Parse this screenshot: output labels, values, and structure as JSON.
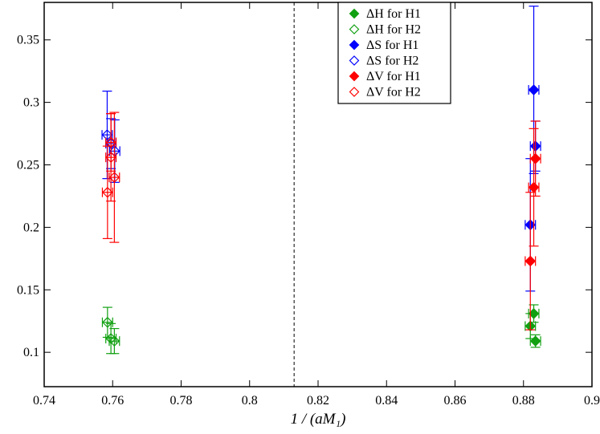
{
  "chart_data": {
    "type": "scatter",
    "x_label": "1 / (aM₁)",
    "xlim": [
      0.74,
      0.9
    ],
    "ylim": [
      0.0725,
      0.38
    ],
    "xticks": [
      0.74,
      0.76,
      0.78,
      0.8,
      0.82,
      0.84,
      0.86,
      0.88,
      0.9
    ],
    "yticks": [
      0.1,
      0.15,
      0.2,
      0.25,
      0.3,
      0.35
    ],
    "vline": 0.813,
    "series": [
      {
        "name": "ΔH for H1",
        "color": "#11a011",
        "filled": true,
        "x": [
          0.883,
          0.882,
          0.8835
        ],
        "values": [
          0.131,
          0.121,
          0.109
        ],
        "xerr": [
          0.0015,
          0.0015,
          0.0015
        ],
        "yerr": [
          0.007,
          0.01,
          0.005
        ]
      },
      {
        "name": "ΔH for H2",
        "color": "#11a011",
        "filled": false,
        "x": [
          0.7585,
          0.7595,
          0.7605
        ],
        "values": [
          0.124,
          0.111,
          0.109
        ],
        "xerr": [
          0.0015,
          0.0015,
          0.0015
        ],
        "yerr": [
          0.012,
          0.012,
          0.01
        ]
      },
      {
        "name": "ΔS for H1",
        "color": "#0000ff",
        "filled": true,
        "x": [
          0.883,
          0.8835,
          0.882
        ],
        "values": [
          0.31,
          0.265,
          0.202
        ],
        "xerr": [
          0.0015,
          0.0015,
          0.0015
        ],
        "yerr": [
          0.067,
          0.02,
          0.053
        ]
      },
      {
        "name": "ΔS for H2",
        "color": "#0000ff",
        "filled": false,
        "x": [
          0.7584,
          0.7606,
          0.7595
        ],
        "values": [
          0.274,
          0.261,
          0.267
        ],
        "xerr": [
          0.0015,
          0.0015,
          0.0015
        ],
        "yerr": [
          0.035,
          0.025,
          0.02
        ]
      },
      {
        "name": "ΔV for H1",
        "color": "#ff0000",
        "filled": true,
        "x": [
          0.8835,
          0.883,
          0.882
        ],
        "values": [
          0.255,
          0.232,
          0.173
        ],
        "xerr": [
          0.0015,
          0.0015,
          0.0015
        ],
        "yerr": [
          0.03,
          0.047,
          0.055
        ]
      },
      {
        "name": "ΔV for H2",
        "color": "#ff0000",
        "filled": false,
        "x": [
          0.7595,
          0.7595,
          0.7605,
          0.7585
        ],
        "values": [
          0.268,
          0.256,
          0.24,
          0.228
        ],
        "xerr": [
          0.0015,
          0.0015,
          0.0015,
          0.0015
        ],
        "yerr": [
          0.023,
          0.035,
          0.052,
          0.037
        ]
      }
    ]
  }
}
